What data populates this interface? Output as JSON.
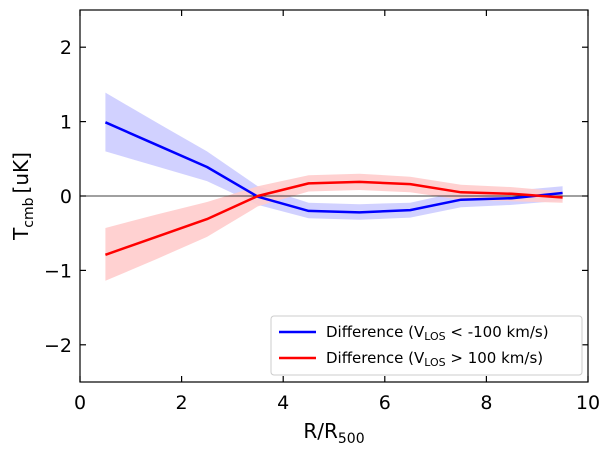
{
  "chart_data": {
    "type": "line",
    "xlabel": {
      "main": "R/R",
      "sub": "500"
    },
    "ylabel": {
      "main": "T",
      "sub": "cmb",
      "unit": "[uK]"
    },
    "xlim": [
      0,
      10
    ],
    "ylim": [
      -2.5,
      2.5
    ],
    "xticks": [
      0,
      2,
      4,
      6,
      8,
      10
    ],
    "yticks": [
      -2,
      -1,
      0,
      1,
      2
    ],
    "ytick_labels": [
      "−2",
      "−1",
      "0",
      "1",
      "2"
    ],
    "reference_line_y": 0,
    "legend_position": "lower-right",
    "series": [
      {
        "name": "Difference (VLOS < -100 km/s)",
        "legend_parts": {
          "pre": "Difference (V",
          "sub": "LOS",
          "post": " < -100 km/s)"
        },
        "color": "#0000ff",
        "band_color": "#ccccff",
        "x": [
          0.5,
          1.5,
          2.5,
          3.5,
          4.5,
          5.5,
          6.5,
          7.5,
          8.5,
          9.5
        ],
        "y": [
          0.99,
          0.69,
          0.39,
          -0.01,
          -0.2,
          -0.22,
          -0.19,
          -0.05,
          -0.03,
          0.04
        ],
        "lower": [
          0.6,
          0.4,
          0.2,
          -0.12,
          -0.3,
          -0.32,
          -0.29,
          -0.15,
          -0.12,
          -0.06
        ],
        "upper": [
          1.39,
          0.99,
          0.6,
          0.13,
          -0.09,
          -0.11,
          -0.09,
          0.06,
          0.07,
          0.13
        ]
      },
      {
        "name": "Difference (VLOS > 100 km/s)",
        "legend_parts": {
          "pre": "Difference (V",
          "sub": "LOS",
          "post": " > 100 km/s)"
        },
        "color": "#ff0000",
        "band_color": "#ffcccc",
        "x": [
          0.5,
          1.5,
          2.5,
          3.5,
          4.5,
          5.5,
          6.5,
          7.5,
          8.5,
          9.5
        ],
        "y": [
          -0.79,
          -0.55,
          -0.31,
          0.0,
          0.17,
          0.19,
          0.16,
          0.05,
          0.03,
          -0.02
        ],
        "lower": [
          -1.14,
          -0.85,
          -0.55,
          -0.14,
          0.06,
          0.08,
          0.05,
          -0.05,
          -0.07,
          -0.09
        ],
        "upper": [
          -0.43,
          -0.25,
          -0.08,
          0.13,
          0.28,
          0.3,
          0.26,
          0.15,
          0.12,
          0.06
        ]
      }
    ]
  }
}
